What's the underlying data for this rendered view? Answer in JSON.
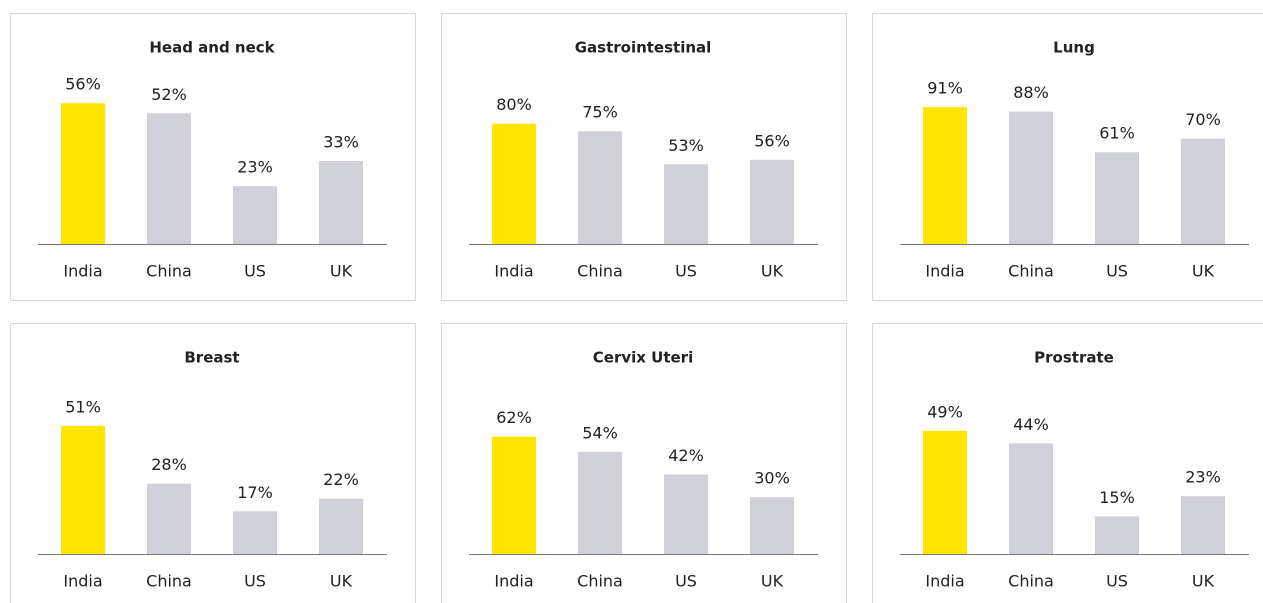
{
  "chart_data": [
    {
      "type": "bar",
      "title": "Head and neck",
      "categories": [
        "India",
        "China",
        "US",
        "UK"
      ],
      "values": [
        56,
        52,
        23,
        33
      ],
      "value_labels": [
        "56%",
        "52%",
        "23%",
        "33%"
      ],
      "colors": [
        "#ffe600",
        "#d0d0d8",
        "#d0d0d8",
        "#d0d0d8"
      ],
      "ylim": [
        0,
        70
      ]
    },
    {
      "type": "bar",
      "title": "Gastrointestinal",
      "categories": [
        "India",
        "China",
        "US",
        "UK"
      ],
      "values": [
        80,
        75,
        53,
        56
      ],
      "value_labels": [
        "80%",
        "75%",
        "53%",
        "56%"
      ],
      "colors": [
        "#ffe600",
        "#d0d0d8",
        "#d0d0d8",
        "#d0d0d8"
      ],
      "ylim": [
        0,
        117
      ]
    },
    {
      "type": "bar",
      "title": "Lung",
      "categories": [
        "India",
        "China",
        "US",
        "UK"
      ],
      "values": [
        91,
        88,
        61,
        70
      ],
      "value_labels": [
        "91%",
        "88%",
        "61%",
        "70%"
      ],
      "colors": [
        "#ffe600",
        "#d0d0d8",
        "#d0d0d8",
        "#d0d0d8"
      ],
      "ylim": [
        0,
        117
      ]
    },
    {
      "type": "bar",
      "title": "Breast",
      "categories": [
        "India",
        "China",
        "US",
        "UK"
      ],
      "values": [
        51,
        28,
        17,
        22
      ],
      "value_labels": [
        "51%",
        "28%",
        "17%",
        "22%"
      ],
      "colors": [
        "#ffe600",
        "#d0d0d8",
        "#d0d0d8",
        "#d0d0d8"
      ],
      "ylim": [
        0,
        70
      ]
    },
    {
      "type": "bar",
      "title": "Cervix Uteri",
      "categories": [
        "India",
        "China",
        "US",
        "UK"
      ],
      "values": [
        62,
        54,
        42,
        30
      ],
      "value_labels": [
        "62%",
        "54%",
        "42%",
        "30%"
      ],
      "colors": [
        "#ffe600",
        "#d0d0d8",
        "#d0d0d8",
        "#d0d0d8"
      ],
      "ylim": [
        0,
        93
      ]
    },
    {
      "type": "bar",
      "title": "Prostrate",
      "categories": [
        "India",
        "China",
        "US",
        "UK"
      ],
      "values": [
        49,
        44,
        15,
        23
      ],
      "value_labels": [
        "49%",
        "44%",
        "15%",
        "23%"
      ],
      "colors": [
        "#ffe600",
        "#d0d0d8",
        "#d0d0d8",
        "#d0d0d8"
      ],
      "ylim": [
        0,
        70
      ]
    }
  ]
}
